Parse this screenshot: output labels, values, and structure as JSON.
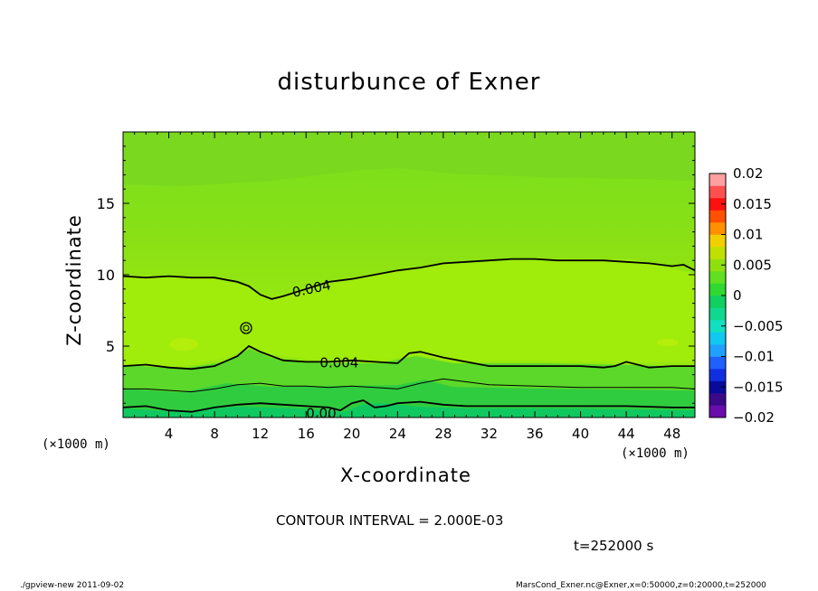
{
  "chart_data": {
    "type": "heatmap",
    "title": "disturbunce of Exner",
    "xlabel": "X-coordinate",
    "ylabel": "Z-coordinate",
    "x_unit_left": "(×1000 m)",
    "x_unit_right": "(×1000 m)",
    "xlim": [
      0,
      50
    ],
    "ylim": [
      0,
      20
    ],
    "x_ticks": [
      4,
      8,
      12,
      16,
      20,
      24,
      28,
      32,
      36,
      40,
      44,
      48
    ],
    "y_ticks": [
      5,
      10,
      15
    ],
    "colorbar": {
      "ticks": [
        "0.02",
        "0.015",
        "0.01",
        "0.005",
        "0",
        "−0.005",
        "−0.01",
        "−0.015",
        "−0.02"
      ],
      "range": [
        -0.02,
        0.02
      ],
      "colors": [
        "#6a0dad",
        "#3a0a8a",
        "#0a0a9a",
        "#1030e0",
        "#2060ff",
        "#20a0ff",
        "#10c8f0",
        "#10e0c0",
        "#10d890",
        "#10d060",
        "#30d830",
        "#60e020",
        "#90e010",
        "#c0e000",
        "#f0d000",
        "#ff9000",
        "#ff5000",
        "#ff1010",
        "#ff5050",
        "#ffa0a0"
      ]
    },
    "contours": [
      {
        "label": "0.004",
        "x": [
          0,
          2,
          4,
          6,
          8,
          10,
          11,
          12,
          13,
          14,
          16,
          18,
          20,
          22,
          24,
          26,
          28,
          30,
          32,
          34,
          36,
          38,
          40,
          42,
          44,
          46,
          48,
          49,
          50
        ],
        "y": [
          9.9,
          9.8,
          9.9,
          9.8,
          9.8,
          9.5,
          9.2,
          8.6,
          8.3,
          8.5,
          9.0,
          9.5,
          9.7,
          10.0,
          10.3,
          10.5,
          10.8,
          10.9,
          11.0,
          11.1,
          11.1,
          11.0,
          11.0,
          11.0,
          10.9,
          10.8,
          10.6,
          10.7,
          10.3
        ]
      },
      {
        "label": "0.004",
        "x": [
          0,
          2,
          4,
          6,
          8,
          10,
          11,
          12,
          14,
          16,
          18,
          20,
          22,
          24,
          25,
          26,
          28,
          30,
          32,
          34,
          36,
          38,
          40,
          42,
          43,
          44,
          46,
          48,
          50
        ],
        "y": [
          3.6,
          3.7,
          3.5,
          3.4,
          3.6,
          4.3,
          5.0,
          4.6,
          4.0,
          3.9,
          3.9,
          4.0,
          3.9,
          3.8,
          4.5,
          4.6,
          4.2,
          3.9,
          3.6,
          3.6,
          3.6,
          3.6,
          3.6,
          3.5,
          3.6,
          3.9,
          3.5,
          3.6,
          3.6
        ]
      },
      {
        "label": "",
        "x": [
          0,
          2,
          4,
          6,
          8,
          10,
          12,
          14,
          16,
          18,
          20,
          22,
          24,
          26,
          28,
          30,
          32,
          36,
          40,
          44,
          48,
          50
        ],
        "y": [
          2.0,
          2.0,
          1.9,
          1.8,
          2.0,
          2.3,
          2.4,
          2.2,
          2.2,
          2.1,
          2.2,
          2.1,
          2.0,
          2.4,
          2.7,
          2.5,
          2.3,
          2.2,
          2.1,
          2.1,
          2.1,
          2.0
        ]
      },
      {
        "label": "0.00",
        "x": [
          0,
          2,
          4,
          6,
          8,
          10,
          12,
          14,
          16,
          18,
          19,
          20,
          21,
          22,
          23,
          24,
          26,
          28,
          30,
          32,
          36,
          40,
          44,
          48,
          50
        ],
        "y": [
          0.7,
          0.8,
          0.5,
          0.4,
          0.7,
          0.9,
          1.0,
          0.9,
          0.8,
          0.7,
          0.5,
          1.0,
          1.2,
          0.7,
          0.8,
          1.0,
          1.1,
          0.9,
          0.8,
          0.8,
          0.8,
          0.8,
          0.8,
          0.7,
          0.7
        ]
      }
    ],
    "contour_interval": "CONTOUR INTERVAL = 2.000E-03",
    "time_label": "t=252000 s"
  },
  "footer_left": "./gpview-new   2011-09-02",
  "footer_right": "MarsCond_Exner.nc@Exner,x=0:50000,z=0:20000,t=252000"
}
